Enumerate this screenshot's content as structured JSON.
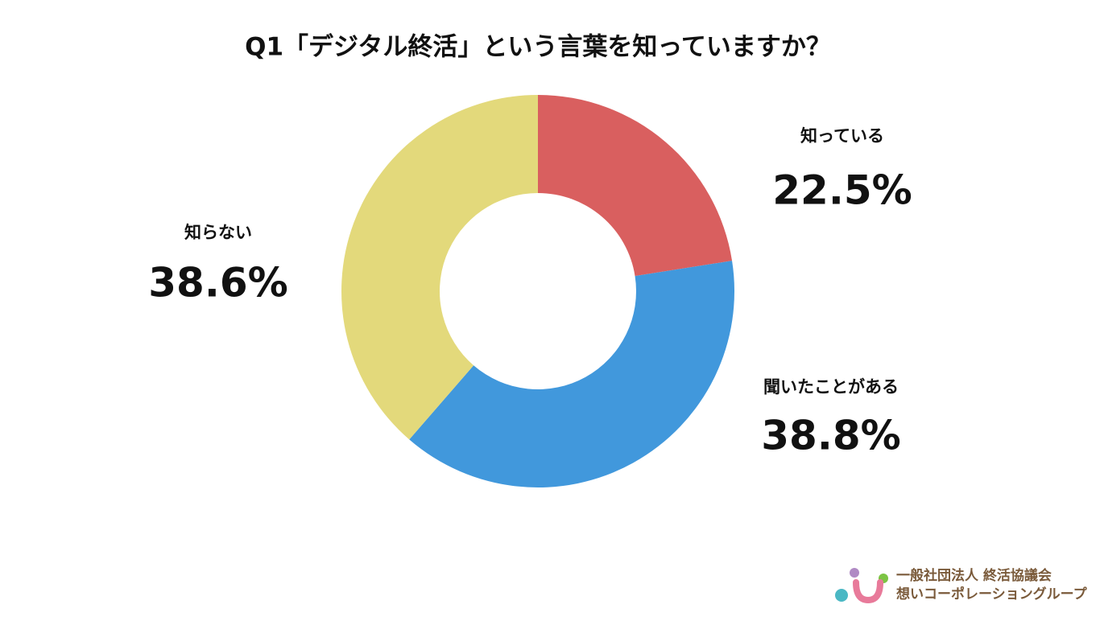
{
  "chart_data": {
    "type": "donut",
    "title": "Q1「デジタル終活」という言葉を知っていますか？",
    "categories": [
      "知っている",
      "聞いたことがある",
      "知らない"
    ],
    "values": [
      22.5,
      38.8,
      38.6
    ],
    "value_labels": [
      "22.5%",
      "38.8%",
      "38.6%"
    ],
    "colors": [
      "#d95f5f",
      "#4198dc",
      "#e3d97b"
    ]
  },
  "logo": {
    "line1": "一般社団法人 終活協議会",
    "line2": "想いコーポレーショングループ"
  }
}
